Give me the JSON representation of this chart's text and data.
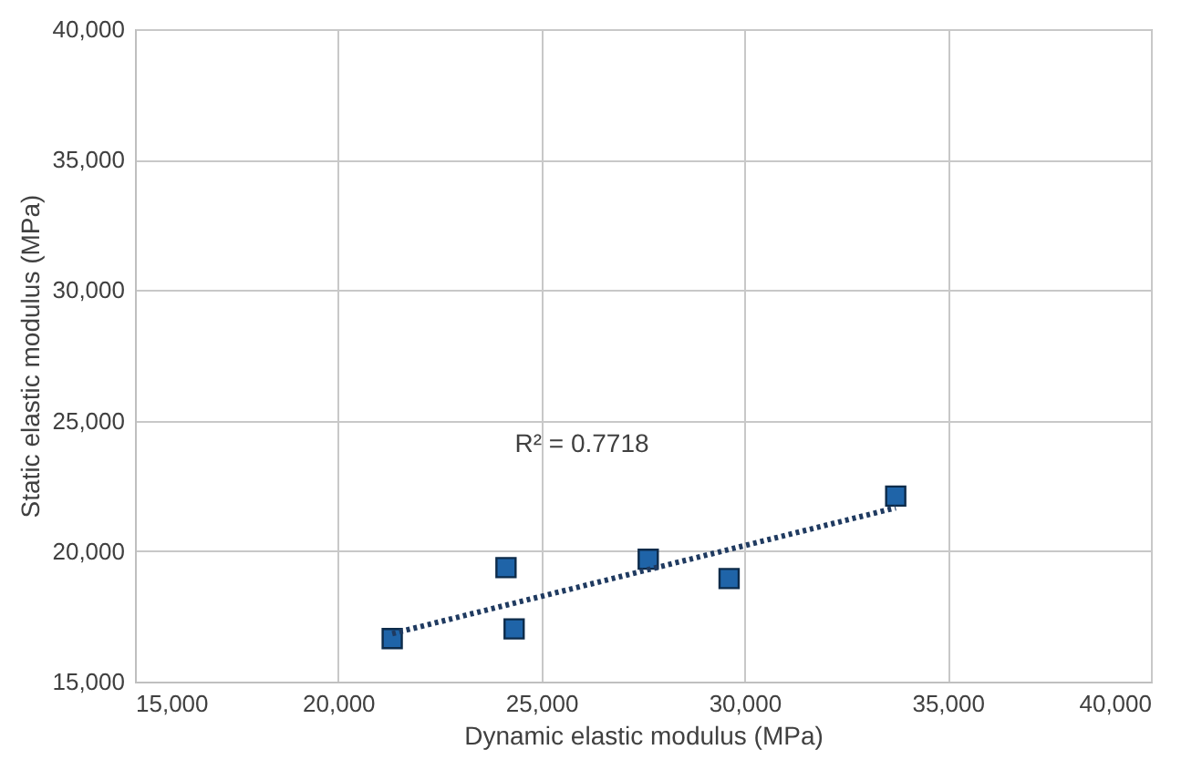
{
  "chart_data": {
    "type": "scatter",
    "xlabel": "Dynamic elastic modulus (MPa)",
    "ylabel": "Static elastic modulus (MPa)",
    "series": [
      {
        "color": "#1f64a8",
        "marker": "square",
        "x": [
          21330,
          24130,
          24330,
          27630,
          29620,
          33720
        ],
        "values": [
          16650,
          19370,
          17020,
          19690,
          18950,
          22110
        ]
      },
      {
        "type": "line",
        "color": "#1f3a60",
        "line_style": "dotted",
        "marker": "none",
        "x": [
          21330,
          33720
        ],
        "values": [
          16840,
          21660
        ]
      }
    ],
    "xlim": [
      15000,
      40000
    ],
    "xticks": [
      {
        "value": 15000,
        "label": "15,000"
      },
      {
        "value": 20000,
        "label": "20,000"
      },
      {
        "value": 25000,
        "label": "25,000"
      },
      {
        "value": 30000,
        "label": "30,000"
      },
      {
        "value": 35000,
        "label": "35,000"
      },
      {
        "value": 40000,
        "label": "40,000"
      }
    ],
    "ylim": [
      15000,
      40000
    ],
    "yticks": [
      {
        "value": 15000,
        "label": "15,000"
      },
      {
        "value": 20000,
        "label": "20,000"
      },
      {
        "value": 25000,
        "label": "25,000"
      },
      {
        "value": 30000,
        "label": "30,000"
      },
      {
        "value": 35000,
        "label": "35,000"
      },
      {
        "value": 40000,
        "label": "40,000"
      }
    ],
    "grid": true,
    "annotations": [
      "R² = 0.7718"
    ]
  }
}
